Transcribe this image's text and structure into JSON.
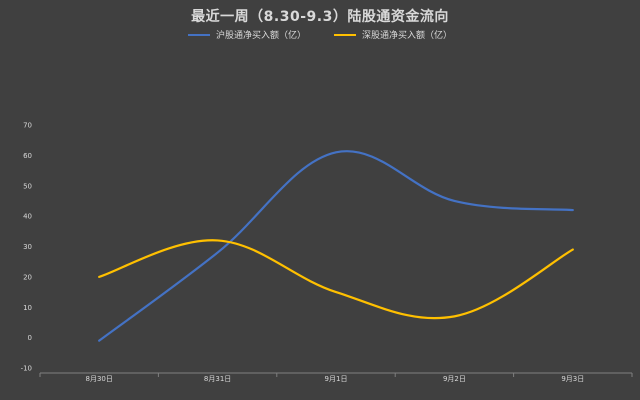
{
  "colors": {
    "background": "#404040",
    "series_sh": "#4472C4",
    "series_sz": "#FFC000",
    "axis": "#7f7f7f",
    "text": "#d9d9d9"
  },
  "chart_data": {
    "type": "line",
    "title": "最近一周（8.30-9.3）陆股通资金流向",
    "xlabel": "",
    "ylabel": "",
    "categories": [
      "8月30日",
      "8月31日",
      "9月1日",
      "9月2日",
      "9月3日"
    ],
    "ylim": [
      -10,
      70
    ],
    "yticks": [
      -10,
      0,
      10,
      20,
      30,
      40,
      50,
      60,
      70
    ],
    "smooth": true,
    "grid": false,
    "legend_position": "top",
    "series": [
      {
        "name": "沪股通净买入额（亿）",
        "color": "#4472C4",
        "values": [
          -1,
          28,
          61,
          45,
          42
        ]
      },
      {
        "name": "深股通净买入额（亿）",
        "color": "#FFC000",
        "values": [
          20,
          32,
          15,
          7,
          29
        ]
      }
    ]
  }
}
